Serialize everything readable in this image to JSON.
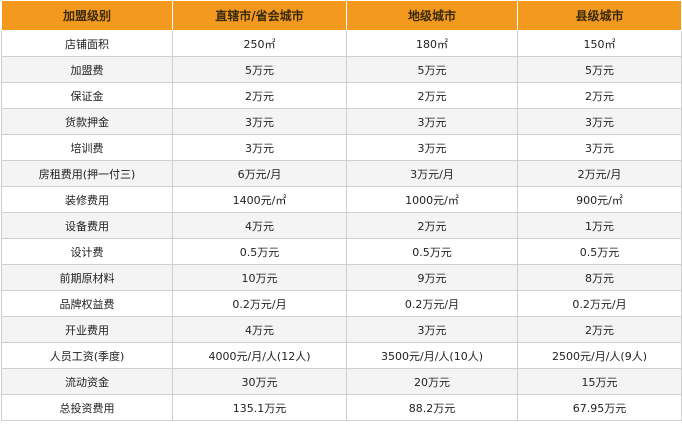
{
  "table": {
    "headers": [
      "加盟级别",
      "直辖市/省会城市",
      "地级城市",
      "县级城市"
    ],
    "rows": [
      [
        "店铺面积",
        "250㎡",
        "180㎡",
        "150㎡"
      ],
      [
        "加盟费",
        "5万元",
        "5万元",
        "5万元"
      ],
      [
        "保证金",
        "2万元",
        "2万元",
        "2万元"
      ],
      [
        "货款押金",
        "3万元",
        "3万元",
        "3万元"
      ],
      [
        "培训费",
        "3万元",
        "3万元",
        "3万元"
      ],
      [
        "房租费用(押一付三)",
        "6万元/月",
        "3万元/月",
        "2万元/月"
      ],
      [
        "装修费用",
        "1400元/㎡",
        "1000元/㎡",
        "900元/㎡"
      ],
      [
        "设备费用",
        "4万元",
        "2万元",
        "1万元"
      ],
      [
        "设计费",
        "0.5万元",
        "0.5万元",
        "0.5万元"
      ],
      [
        "前期原材料",
        "10万元",
        "9万元",
        "8万元"
      ],
      [
        "品牌权益费",
        "0.2万元/月",
        "0.2万元/月",
        "0.2万元/月"
      ],
      [
        "开业费用",
        "4万元",
        "3万元",
        "2万元"
      ],
      [
        "人员工资(季度)",
        "4000元/月/人(12人)",
        "3500元/月/人(10人)",
        "2500元/月/人(9人)"
      ],
      [
        "流动资金",
        "30万元",
        "20万元",
        "15万元"
      ],
      [
        "总投资费用",
        "135.1万元",
        "88.2万元",
        "67.95万元"
      ]
    ]
  },
  "colors": {
    "header_bg": "#f39a1e",
    "border": "#cfcfcf",
    "alt_row_bg": "#f4f4f4"
  }
}
